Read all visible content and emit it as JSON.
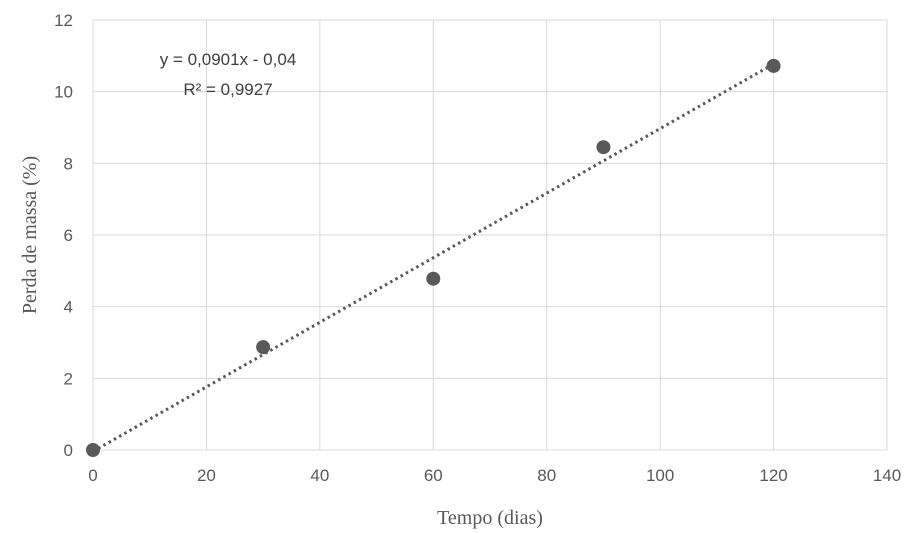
{
  "chart_data": {
    "type": "scatter",
    "title": "",
    "xlabel": "Tempo (dias)",
    "ylabel": "Perda de massa (%)",
    "xlim": [
      0,
      140
    ],
    "ylim": [
      0,
      12
    ],
    "xticks": [
      0,
      20,
      40,
      60,
      80,
      100,
      120,
      140
    ],
    "yticks": [
      0,
      2,
      4,
      6,
      8,
      10,
      12
    ],
    "grid": true,
    "series": [
      {
        "x": [
          0,
          30,
          60,
          90,
          120
        ],
        "y": [
          0,
          2.87,
          4.78,
          8.45,
          10.72
        ],
        "color": "#595959",
        "marker": "circle"
      }
    ],
    "trendline": {
      "type": "linear",
      "slope": 0.0901,
      "intercept": -0.04,
      "style": "dotted",
      "color": "#595959",
      "x_range": [
        0,
        120
      ]
    },
    "annotations": [
      {
        "text": "y = 0,0901x - 0,04",
        "position": "top-left"
      },
      {
        "text": "R² = 0,9927",
        "position": "top-left"
      }
    ]
  }
}
